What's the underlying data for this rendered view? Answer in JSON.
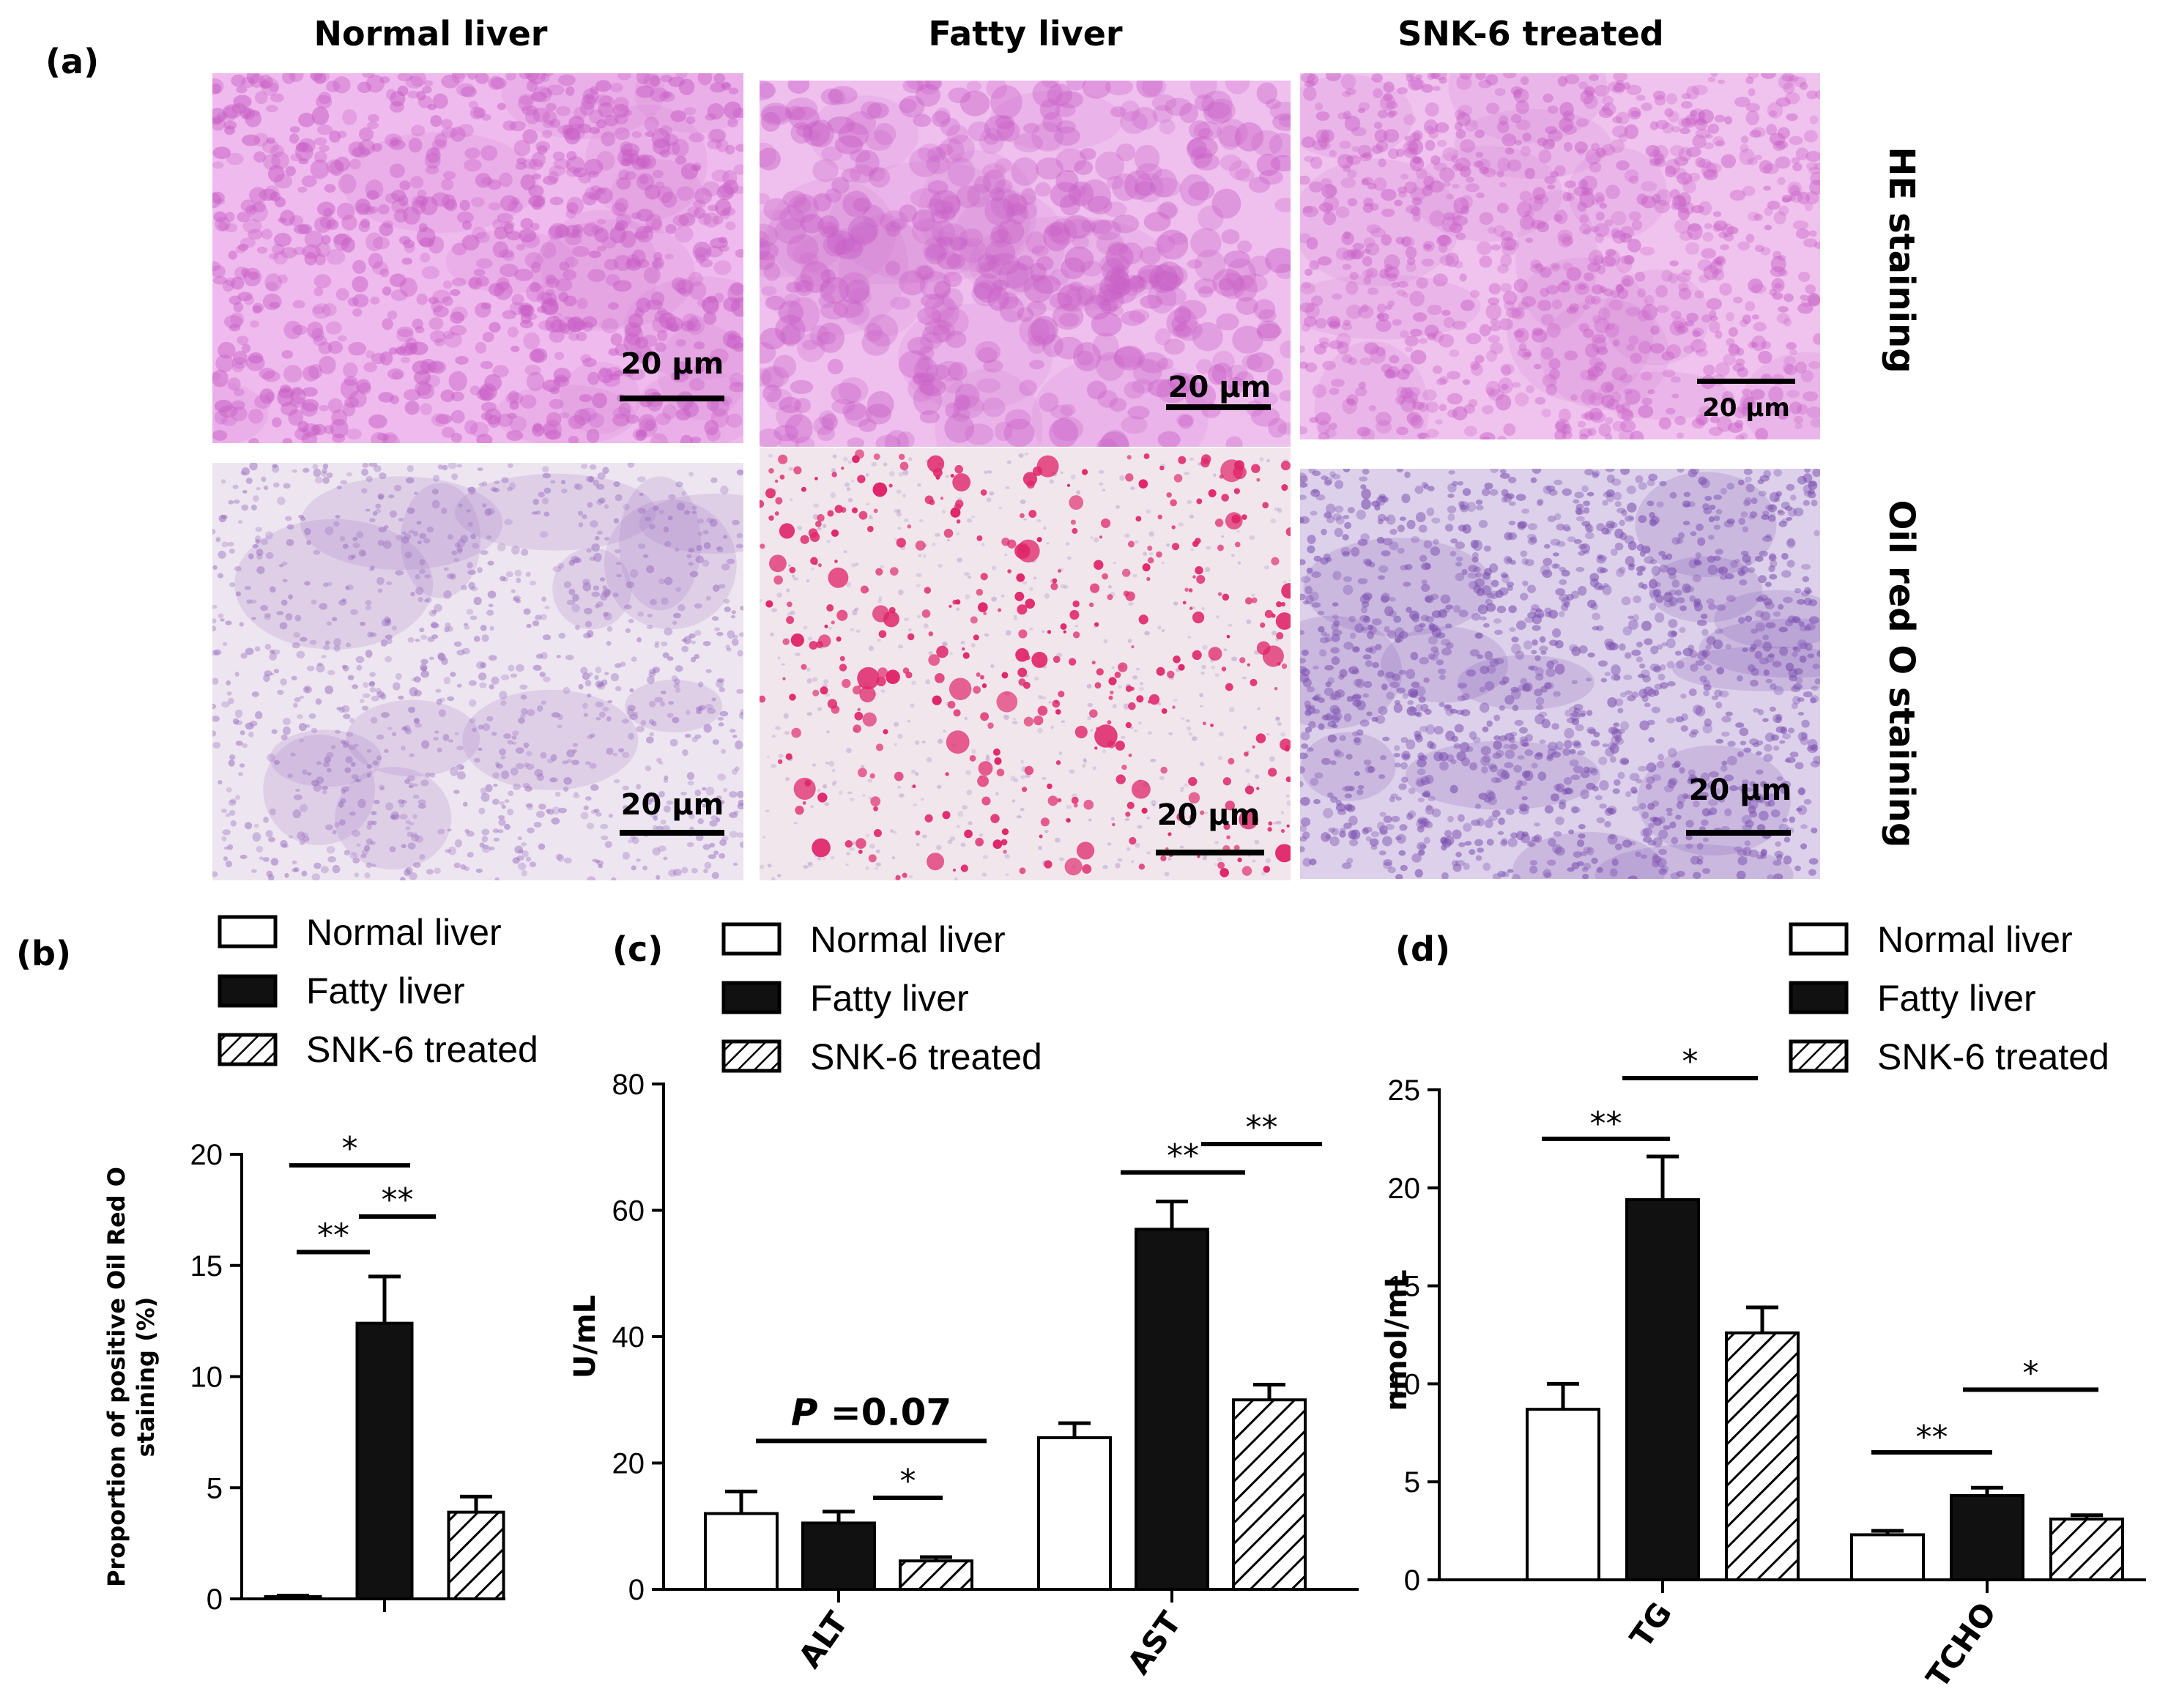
{
  "panel_a": {
    "label": "(a)",
    "column_titles": [
      "Normal liver",
      "Fatty liver",
      "SNK-6 treated"
    ],
    "row_labels": [
      "HE staining",
      "Oil red O staining"
    ],
    "scale_bar": "20 μm"
  },
  "colors": {
    "he_bg": "#eeb6ec",
    "he_cell": "#c85fc6",
    "oro_bg": "#ece3ef",
    "oro_cell": "#9a6fc0",
    "oro_cell_dense": "#7b4fb0",
    "lipid": "#e0266a"
  },
  "legend": [
    "Normal liver",
    "Fatty liver",
    "SNK-6 treated"
  ],
  "chart_data": [
    {
      "type": "bar",
      "panel": "(b)",
      "ylabel_lines": [
        "Proportion of positive Oil Red O",
        "staining (%)"
      ],
      "ylim": [
        0,
        20
      ],
      "yticks": [
        0,
        5,
        10,
        15,
        20
      ],
      "categories": [
        ""
      ],
      "series": [
        {
          "name": "Normal liver",
          "values": [
            0.1
          ],
          "errors": [
            0.05
          ]
        },
        {
          "name": "Fatty liver",
          "values": [
            12.4
          ],
          "errors": [
            2.1
          ]
        },
        {
          "name": "SNK-6 treated",
          "values": [
            3.9
          ],
          "errors": [
            0.7
          ]
        }
      ],
      "annotations": [
        {
          "label": "*",
          "level": 19.5
        },
        {
          "label": "**",
          "level": 15.6
        },
        {
          "label": "**",
          "level": 17.2
        }
      ]
    },
    {
      "type": "bar",
      "panel": "(c)",
      "ylabel": "U/mL",
      "ylim": [
        0,
        80
      ],
      "yticks": [
        0,
        20,
        40,
        60,
        80
      ],
      "categories": [
        "ALT",
        "AST"
      ],
      "series": [
        {
          "name": "Normal liver",
          "values": [
            12,
            24
          ],
          "errors": [
            3.5,
            2.3
          ]
        },
        {
          "name": "Fatty liver",
          "values": [
            10.5,
            57
          ],
          "errors": [
            1.8,
            4.4
          ]
        },
        {
          "name": "SNK-6 treated",
          "values": [
            4.5,
            30
          ],
          "errors": [
            0.6,
            2.4
          ]
        }
      ],
      "annotations": [
        {
          "label": "P =0.07",
          "level": 23.5
        },
        {
          "label": "*",
          "level": 14.5
        },
        {
          "label": "**",
          "level": 66
        },
        {
          "label": "**",
          "level": 70.5
        }
      ]
    },
    {
      "type": "bar",
      "panel": "(d)",
      "ylabel": "nmol/mL",
      "ylim": [
        0,
        25
      ],
      "yticks": [
        0,
        5,
        10,
        15,
        20,
        25
      ],
      "categories": [
        "TG",
        "TCHO"
      ],
      "series": [
        {
          "name": "Normal liver",
          "values": [
            8.7,
            2.3
          ],
          "errors": [
            1.3,
            0.2
          ]
        },
        {
          "name": "Fatty liver",
          "values": [
            19.4,
            4.3
          ],
          "errors": [
            2.2,
            0.4
          ]
        },
        {
          "name": "SNK-6 treated",
          "values": [
            12.6,
            3.1
          ],
          "errors": [
            1.3,
            0.2
          ]
        }
      ],
      "annotations": [
        {
          "label": "**",
          "level": 22.5
        },
        {
          "label": "*",
          "level": 25.6
        },
        {
          "label": "**",
          "level": 6.5
        },
        {
          "label": "*",
          "level": 9.7
        }
      ]
    }
  ]
}
